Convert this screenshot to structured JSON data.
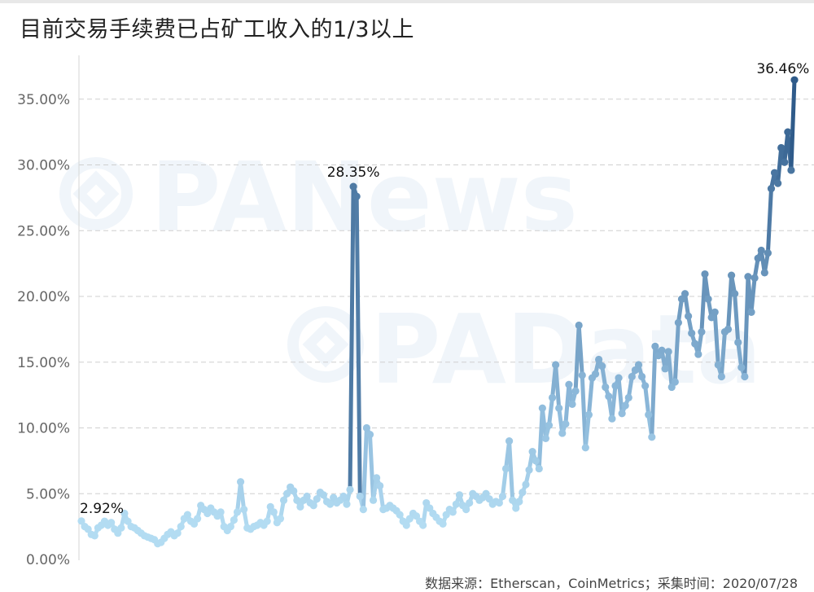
{
  "title": "目前交易手续费已占矿工收入的1/3以上",
  "source": "数据来源：Etherscan，CoinMetrics；采集时间：2020/07/28",
  "watermarks": [
    "PANews",
    "PAData"
  ],
  "colors": {
    "low": "#b3dcf2",
    "mid": "#8fbbdc",
    "high": "#2f5b8a",
    "grid": "#cfcfcf",
    "axis_text": "#666666"
  },
  "chart_data": {
    "type": "line",
    "title": "目前交易手续费已占矿工收入的1/3以上",
    "xlabel": "",
    "ylabel": "",
    "ylim": [
      0,
      38
    ],
    "yticks": [
      0,
      5,
      10,
      15,
      20,
      25,
      30,
      35
    ],
    "ytick_labels": [
      "0.00%",
      "5.00%",
      "10.00%",
      "15.00%",
      "20.00%",
      "25.00%",
      "30.00%",
      "35.00%"
    ],
    "grid": true,
    "color_by_value": true,
    "annotations": [
      {
        "label": "2.92%",
        "index": 0,
        "value": 2.92
      },
      {
        "label": "28.35%",
        "index": 82,
        "value": 28.35
      },
      {
        "label": "36.46%",
        "index": 219,
        "value": 36.46
      }
    ],
    "series": [
      {
        "values": [
          2.92,
          2.5,
          2.3,
          1.9,
          1.8,
          2.4,
          2.6,
          2.9,
          2.6,
          2.8,
          2.3,
          2.0,
          2.4,
          3.5,
          2.9,
          2.5,
          2.4,
          2.2,
          2.0,
          1.8,
          1.7,
          1.6,
          1.5,
          1.2,
          1.3,
          1.6,
          1.9,
          2.1,
          1.8,
          2.0,
          2.5,
          3.1,
          3.4,
          2.9,
          2.7,
          3.1,
          4.1,
          3.8,
          3.5,
          3.9,
          3.6,
          3.3,
          3.6,
          2.5,
          2.2,
          2.5,
          3.0,
          3.6,
          5.9,
          3.8,
          2.4,
          2.3,
          2.5,
          2.6,
          2.8,
          2.6,
          2.9,
          4.0,
          3.6,
          2.8,
          3.1,
          4.5,
          5.0,
          5.5,
          5.2,
          4.5,
          4.0,
          4.5,
          4.8,
          4.3,
          4.1,
          4.6,
          5.1,
          4.9,
          4.4,
          4.2,
          4.7,
          4.3,
          4.5,
          4.8,
          4.2,
          5.3,
          28.35,
          27.6,
          4.8,
          3.8,
          10.0,
          9.5,
          4.5,
          6.2,
          5.6,
          3.8,
          3.9,
          4.1,
          3.9,
          3.7,
          3.4,
          2.9,
          2.6,
          3.1,
          3.5,
          3.3,
          2.9,
          2.6,
          4.3,
          3.9,
          3.5,
          3.2,
          2.9,
          2.7,
          3.4,
          3.8,
          3.6,
          4.2,
          4.9,
          4.1,
          3.8,
          4.3,
          5.0,
          4.8,
          4.5,
          4.7,
          5.0,
          4.6,
          4.2,
          4.4,
          4.3,
          4.8,
          6.9,
          9.0,
          4.5,
          3.9,
          4.4,
          5.1,
          5.7,
          6.8,
          8.2,
          7.5,
          6.9,
          11.5,
          9.2,
          10.2,
          12.3,
          14.8,
          11.5,
          9.6,
          10.3,
          13.3,
          11.8,
          12.8,
          17.8,
          14.0,
          8.5,
          11.0,
          13.8,
          14.1,
          15.2,
          14.7,
          13.1,
          12.4,
          10.7,
          13.2,
          13.8,
          11.1,
          11.7,
          12.3,
          13.9,
          14.4,
          14.8,
          13.9,
          13.2,
          11.0,
          9.3,
          16.2,
          15.5,
          15.9,
          14.5,
          15.8,
          13.1,
          13.5,
          18.0,
          19.8,
          20.2,
          18.5,
          17.2,
          16.4,
          15.6,
          17.3,
          21.7,
          19.8,
          18.4,
          18.8,
          14.8,
          13.9,
          17.3,
          17.5,
          21.6,
          20.2,
          16.5,
          14.6,
          13.9,
          21.5,
          18.8,
          21.4,
          22.9,
          23.5,
          21.8,
          23.3,
          28.2,
          29.4,
          28.6,
          31.3,
          30.2,
          32.5,
          29.6,
          36.46
        ]
      }
    ]
  }
}
